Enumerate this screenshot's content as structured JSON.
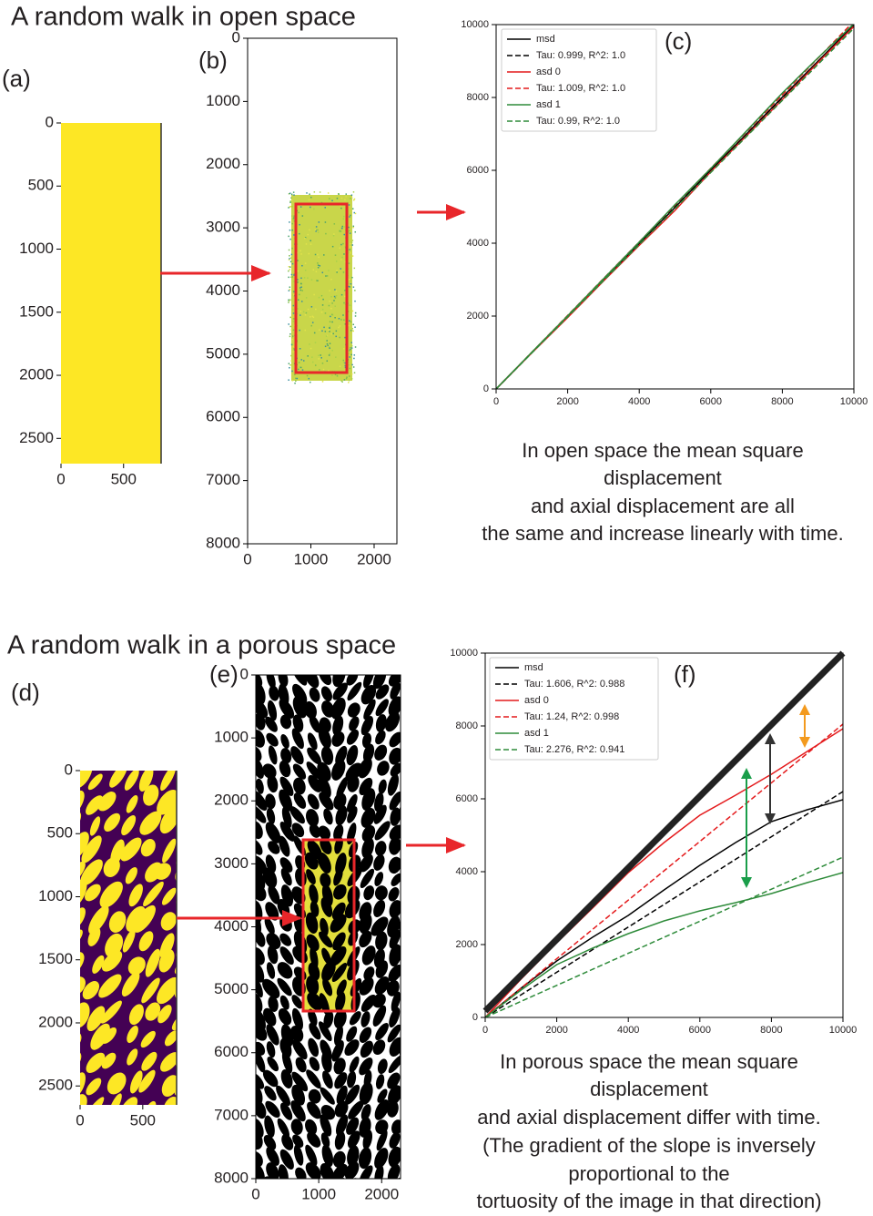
{
  "sections": [
    {
      "title": "A random walk in open space",
      "caption": [
        "In open space  the mean square",
        "displacement",
        "and axial displacement are all",
        "the same and increase linearly with time."
      ]
    },
    {
      "title": "A random walk in a porous space",
      "caption": [
        "In porous space  the mean square",
        "displacement",
        "and axial displacement differ with time.",
        "(The gradient of the slope is inversely",
        "proportional to the",
        "tortuosity of the image in that direction)"
      ]
    }
  ],
  "chart_data": [
    {
      "type": "image",
      "panel_label": "(a)",
      "colors": [
        "#fde725"
      ],
      "xlim": [
        0,
        800
      ],
      "ylim": [
        2700,
        0
      ],
      "xticks": [
        0,
        500
      ],
      "yticks": [
        0,
        500,
        1000,
        1500,
        2000,
        2500
      ]
    },
    {
      "type": "image",
      "panel_label": "(b)",
      "colors": [
        "#ffffff",
        "#c9d64a"
      ],
      "xlim": [
        0,
        2360
      ],
      "ylim": [
        8000,
        0
      ],
      "xticks": [
        0,
        1000,
        2000
      ],
      "yticks": [
        0,
        1000,
        2000,
        3000,
        4000,
        5000,
        6000,
        7000,
        8000
      ]
    },
    {
      "type": "line",
      "panel_label": "(c)",
      "legend": "upper left",
      "x": [
        0,
        1000,
        2000,
        3000,
        4000,
        5000,
        6000,
        7000,
        8000,
        9000,
        10000
      ],
      "xlim": [
        0,
        10000
      ],
      "ylim": [
        0,
        10000
      ],
      "xticks": [
        0,
        2000,
        4000,
        6000,
        8000,
        10000
      ],
      "yticks": [
        0,
        2000,
        4000,
        6000,
        8000,
        10000
      ],
      "series": [
        {
          "name": "msd",
          "color": "#000000",
          "linestyle": "solid",
          "values": [
            0,
            1000,
            1990,
            2980,
            3990,
            4980,
            6010,
            7000,
            8010,
            9000,
            10000
          ]
        },
        {
          "name": "Tau: 0.999, R^2: 1.0",
          "color": "#000000",
          "linestyle": "dashed",
          "values": [
            0,
            999,
            1998,
            2997,
            3996,
            4995,
            5994,
            6993,
            7992,
            8991,
            9990
          ]
        },
        {
          "name": "asd 0",
          "color": "#e41a1c",
          "linestyle": "solid",
          "values": [
            0,
            990,
            1960,
            2960,
            3940,
            4900,
            5960,
            6950,
            7940,
            8960,
            9950
          ]
        },
        {
          "name": "Tau: 1.009, R^2: 1.0",
          "color": "#e41a1c",
          "linestyle": "dashed",
          "values": [
            0,
            1009,
            2018,
            3027,
            4036,
            5045,
            6054,
            7063,
            8072,
            9081,
            10090
          ]
        },
        {
          "name": "asd 1",
          "color": "#2e8b3a",
          "linestyle": "solid",
          "values": [
            0,
            1010,
            2010,
            3020,
            4030,
            5060,
            6050,
            7080,
            8120,
            9090,
            10020
          ]
        },
        {
          "name": "Tau: 0.99, R^2: 1.0",
          "color": "#2e8b3a",
          "linestyle": "dashed",
          "values": [
            0,
            990,
            1980,
            2970,
            3960,
            4950,
            5940,
            6930,
            7920,
            8910,
            9900
          ]
        }
      ]
    },
    {
      "type": "image",
      "panel_label": "(d)",
      "colors": [
        "#440154",
        "#fde725"
      ],
      "xlim": [
        0,
        770
      ],
      "ylim": [
        2650,
        0
      ],
      "xticks": [
        0,
        500
      ],
      "yticks": [
        0,
        500,
        1000,
        1500,
        2000,
        2500
      ]
    },
    {
      "type": "image",
      "panel_label": "(e)",
      "colors": [
        "#ffffff",
        "#000000",
        "#e3df3c"
      ],
      "xlim": [
        0,
        2300
      ],
      "ylim": [
        8000,
        0
      ],
      "xticks": [
        0,
        1000,
        2000
      ],
      "yticks": [
        0,
        1000,
        2000,
        3000,
        4000,
        5000,
        6000,
        7000,
        8000
      ]
    },
    {
      "type": "line",
      "panel_label": "(f)",
      "legend": "upper left",
      "x": [
        0,
        1000,
        2000,
        3000,
        4000,
        5000,
        6000,
        7000,
        8000,
        9000,
        10000
      ],
      "xlim": [
        0,
        10000
      ],
      "ylim": [
        0,
        10000
      ],
      "xticks": [
        0,
        2000,
        4000,
        6000,
        8000,
        10000
      ],
      "yticks": [
        0,
        2000,
        4000,
        6000,
        8000,
        10000
      ],
      "series": [
        {
          "name": "msd",
          "color": "#000000",
          "linestyle": "solid",
          "values": [
            0,
            800,
            1550,
            2200,
            2800,
            3500,
            4175,
            4800,
            5375,
            5700,
            5975
          ]
        },
        {
          "name": "Tau: 1.606, R^2: 0.988",
          "color": "#000000",
          "linestyle": "dashed",
          "values": [
            0,
            620,
            1240,
            1860,
            2480,
            3100,
            3720,
            4340,
            4960,
            5580,
            6200
          ]
        },
        {
          "name": "asd 0",
          "color": "#e41a1c",
          "linestyle": "solid",
          "values": [
            0,
            1050,
            2050,
            3000,
            3975,
            4800,
            5550,
            6100,
            6675,
            7300,
            7925
          ]
        },
        {
          "name": "Tau: 1.24, R^2: 0.998",
          "color": "#e41a1c",
          "linestyle": "dashed",
          "values": [
            0,
            805,
            1610,
            2415,
            3220,
            4025,
            4830,
            5635,
            6440,
            7245,
            8050
          ]
        },
        {
          "name": "asd 1",
          "color": "#2e8b3a",
          "linestyle": "solid",
          "values": [
            0,
            750,
            1450,
            1900,
            2300,
            2650,
            2925,
            3150,
            3400,
            3700,
            3975
          ]
        },
        {
          "name": "Tau: 2.276, R^2: 0.941",
          "color": "#2e8b3a",
          "linestyle": "dashed",
          "values": [
            0,
            440,
            880,
            1320,
            1760,
            2200,
            2640,
            3080,
            3520,
            3960,
            4400
          ]
        }
      ]
    }
  ]
}
